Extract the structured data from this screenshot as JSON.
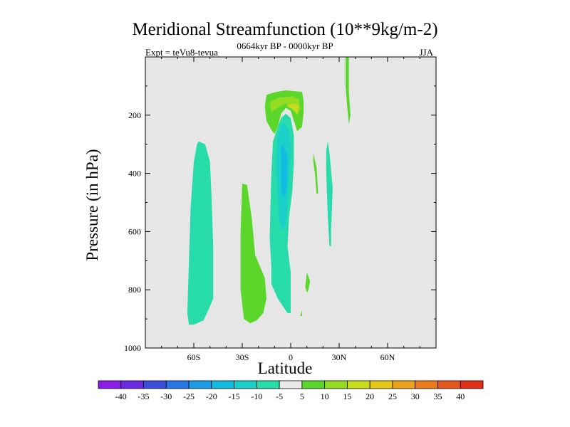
{
  "chart_data": {
    "type": "contour",
    "title": "Meridional Streamfunction (10**9kg/m-2)",
    "subtitle": "0664kyr BP - 0000kyr BP",
    "left_string": "Expt = teVu8-tevua",
    "right_string": "JJA",
    "xlabel": "Latitude",
    "ylabel": "Pressure (in hPa)",
    "x_ticks": [
      {
        "value": -60,
        "label": "60S"
      },
      {
        "value": -30,
        "label": "30S"
      },
      {
        "value": 0,
        "label": "0"
      },
      {
        "value": 30,
        "label": "30N"
      },
      {
        "value": 60,
        "label": "60N"
      }
    ],
    "y_ticks": [
      {
        "value": 200,
        "label": "200"
      },
      {
        "value": 400,
        "label": "400"
      },
      {
        "value": 600,
        "label": "600"
      },
      {
        "value": 800,
        "label": "800"
      },
      {
        "value": 1000,
        "label": "1000"
      }
    ],
    "xlim": [
      -90,
      90
    ],
    "ylim": [
      0,
      1000
    ],
    "colorbar": {
      "levels": [
        -40,
        -35,
        -30,
        -25,
        -20,
        -15,
        -10,
        -5,
        5,
        10,
        15,
        20,
        25,
        30,
        35,
        40
      ],
      "labels": [
        "-40",
        "-35",
        "-30",
        "-25",
        "-20",
        "-15",
        "-10",
        "-5",
        "5",
        "10",
        "15",
        "20",
        "25",
        "30",
        "35",
        "40"
      ],
      "colors": [
        "#8a1ee6",
        "#6a2be0",
        "#3b4fd8",
        "#2676e6",
        "#1a9be6",
        "#12bce0",
        "#19d1c8",
        "#27dca8",
        "#e8e8e8",
        "#5bd62a",
        "#93dc22",
        "#c6dc1c",
        "#e6c81a",
        "#eca21a",
        "#ea7c1c",
        "#e6561c",
        "#e03018"
      ]
    },
    "background_color": "#e6e6e6",
    "regions": [
      {
        "label": "-5 cell 40S-65S",
        "level": -5,
        "color": "#27dca8",
        "points": [
          [
            -57,
            290
          ],
          [
            -53,
            300
          ],
          [
            -50,
            360
          ],
          [
            -49,
            480
          ],
          [
            -48,
            650
          ],
          [
            -48,
            830
          ],
          [
            -51,
            870
          ],
          [
            -54,
            905
          ],
          [
            -60,
            920
          ],
          [
            -63,
            920
          ],
          [
            -64,
            880
          ],
          [
            -63,
            700
          ],
          [
            -62,
            520
          ],
          [
            -60,
            360
          ],
          [
            -58,
            300
          ]
        ]
      },
      {
        "label": "+5 cell 15S-30S",
        "level": 5,
        "color": "#5bd62a",
        "points": [
          [
            -30,
            435
          ],
          [
            -27,
            440
          ],
          [
            -24,
            560
          ],
          [
            -22,
            680
          ],
          [
            -16,
            760
          ],
          [
            -15,
            830
          ],
          [
            -17,
            880
          ],
          [
            -21,
            905
          ],
          [
            -25,
            915
          ],
          [
            -29,
            900
          ],
          [
            -31,
            800
          ],
          [
            -31,
            600
          ]
        ]
      },
      {
        "label": "-5 cell 0-15S",
        "level": -5,
        "color": "#27dca8",
        "points": [
          [
            -3,
            195
          ],
          [
            0,
            210
          ],
          [
            2,
            270
          ],
          [
            2,
            360
          ],
          [
            1,
            460
          ],
          [
            -1,
            550
          ],
          [
            -2,
            650
          ],
          [
            0,
            740
          ],
          [
            0,
            880
          ],
          [
            -2,
            880
          ],
          [
            -8,
            830
          ],
          [
            -12,
            780
          ],
          [
            -12,
            720
          ],
          [
            -13,
            620
          ],
          [
            -12,
            400
          ],
          [
            -11,
            290
          ],
          [
            -8,
            240
          ],
          [
            -6,
            210
          ]
        ]
      },
      {
        "label": "-10 core near 5S",
        "level": -10,
        "color": "#19d1c8",
        "points": [
          [
            -4,
            225
          ],
          [
            -1,
            250
          ],
          [
            0,
            320
          ],
          [
            -1,
            420
          ],
          [
            -2,
            520
          ],
          [
            -3,
            580
          ],
          [
            -5,
            595
          ],
          [
            -7,
            570
          ],
          [
            -8,
            480
          ],
          [
            -9,
            360
          ],
          [
            -8,
            270
          ],
          [
            -6,
            235
          ]
        ]
      },
      {
        "label": "-15 core near 5S",
        "level": -15,
        "color": "#12bce0",
        "points": [
          [
            -5,
            300
          ],
          [
            -2,
            340
          ],
          [
            -2,
            420
          ],
          [
            -3,
            470
          ],
          [
            -5,
            480
          ],
          [
            -6,
            450
          ],
          [
            -6,
            380
          ],
          [
            -6,
            320
          ]
        ]
      },
      {
        "label": "+5 upper cell 0-15S",
        "level": 5,
        "color": "#5bd62a",
        "points": [
          [
            -15,
            130
          ],
          [
            -9,
            120
          ],
          [
            -3,
            115
          ],
          [
            7,
            120
          ],
          [
            8,
            150
          ],
          [
            8,
            190
          ],
          [
            7,
            240
          ],
          [
            4,
            255
          ],
          [
            2,
            220
          ],
          [
            0,
            185
          ],
          [
            -3,
            175
          ],
          [
            -6,
            195
          ],
          [
            -8,
            240
          ],
          [
            -10,
            265
          ],
          [
            -12,
            250
          ],
          [
            -15,
            220
          ],
          [
            -16,
            170
          ]
        ]
      },
      {
        "label": "+10 upper cell",
        "level": 10,
        "color": "#93dc22",
        "points": [
          [
            -13,
            155
          ],
          [
            -7,
            140
          ],
          [
            1,
            135
          ],
          [
            5,
            145
          ],
          [
            6,
            180
          ],
          [
            4,
            200
          ],
          [
            1,
            180
          ],
          [
            -3,
            160
          ],
          [
            -8,
            175
          ],
          [
            -12,
            190
          ]
        ]
      },
      {
        "label": "+15 upper cell",
        "level": 15,
        "color": "#c6dc1c",
        "points": [
          [
            -2,
            165
          ],
          [
            3,
            160
          ],
          [
            5,
            170
          ],
          [
            4,
            195
          ],
          [
            1,
            178
          ],
          [
            -2,
            172
          ]
        ]
      },
      {
        "label": "-5 strip 25N",
        "level": -5,
        "color": "#27dca8",
        "points": [
          [
            24,
            330
          ],
          [
            26,
            450
          ],
          [
            25,
            600
          ],
          [
            25,
            650
          ],
          [
            24,
            650
          ],
          [
            23,
            550
          ],
          [
            22,
            400
          ],
          [
            22,
            320
          ],
          [
            23,
            290
          ]
        ]
      },
      {
        "label": "+5 sliver 15N",
        "level": 5,
        "color": "#5bd62a",
        "points": [
          [
            14,
            330
          ],
          [
            16,
            380
          ],
          [
            17,
            470
          ],
          [
            16,
            470
          ],
          [
            15,
            400
          ],
          [
            14,
            360
          ]
        ]
      },
      {
        "label": "+5 jet 35N",
        "level": 5,
        "color": "#5bd62a",
        "points": [
          [
            34,
            0
          ],
          [
            36,
            0
          ],
          [
            36,
            120
          ],
          [
            37,
            200
          ],
          [
            36,
            230
          ],
          [
            35,
            170
          ],
          [
            34,
            100
          ]
        ]
      },
      {
        "label": "+5 speck 12N",
        "level": 5,
        "color": "#5bd62a",
        "points": [
          [
            10,
            740
          ],
          [
            12,
            770
          ],
          [
            11,
            800
          ],
          [
            10,
            810
          ],
          [
            9,
            790
          ]
        ]
      },
      {
        "label": "+5 speck 7N",
        "level": 5,
        "color": "#5bd62a",
        "points": [
          [
            7,
            870
          ],
          [
            7,
            890
          ],
          [
            6,
            890
          ]
        ]
      }
    ]
  }
}
